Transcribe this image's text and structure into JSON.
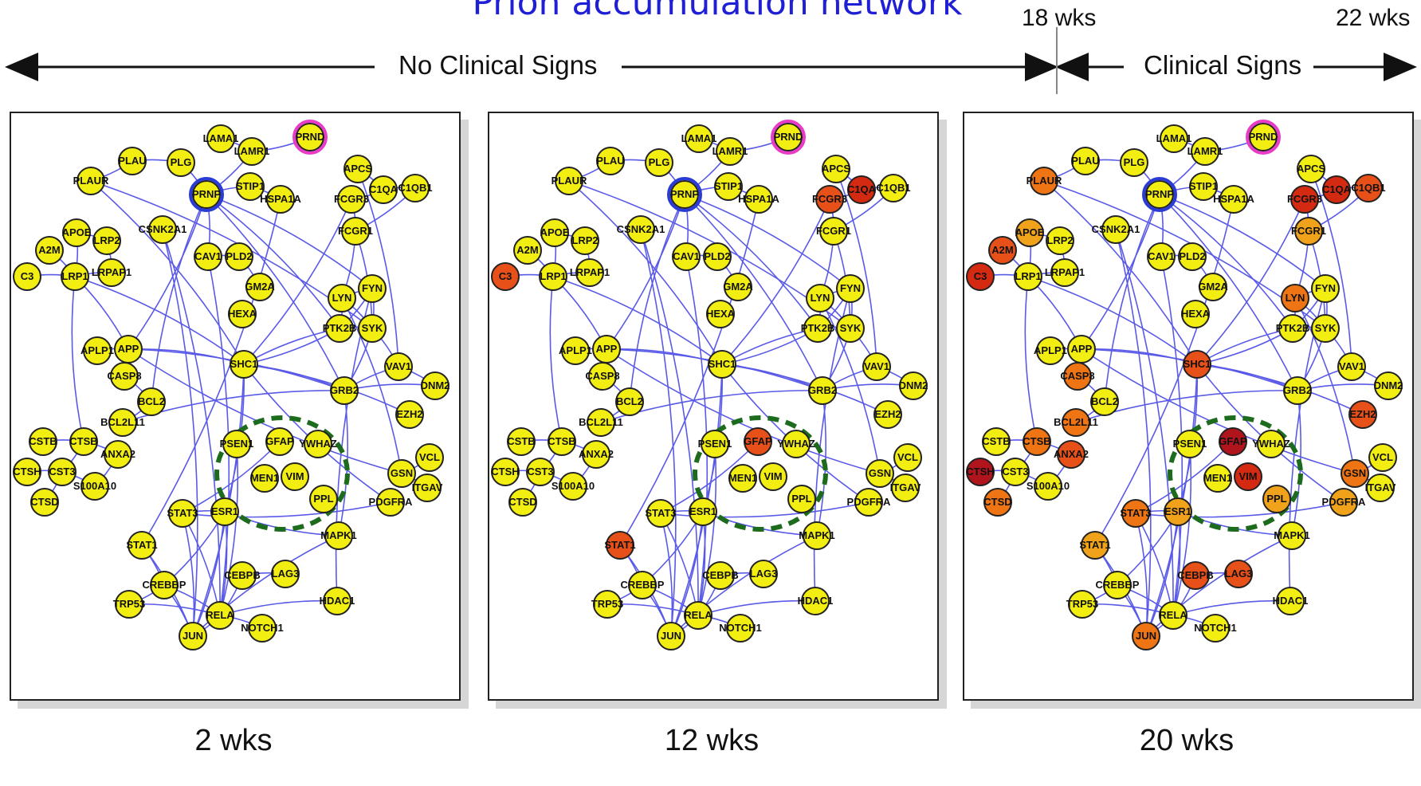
{
  "title": "Prion accumulation network",
  "timeline": {
    "week_18": "18 wks",
    "week_22": "22 wks",
    "phase_no_signs": "No Clinical Signs",
    "phase_signs": "Clinical Signs"
  },
  "colors": {
    "title": "#1f1fd6",
    "edge": "#5a5ae8",
    "highlight_ring_prnp": "#2a3bd6",
    "highlight_ring_prnd": "#e83cc8",
    "cluster_ring": "#1d6b1d",
    "yellow": "#f2ee11",
    "orange_light": "#f0a21a",
    "orange": "#ee7414",
    "red_orange": "#e8501a",
    "red": "#d42a12",
    "dark_red": "#b0141c"
  },
  "nodes": [
    "PRND",
    "LAMA1",
    "LAMR1",
    "PLG",
    "PLAU",
    "PLAUR",
    "PRNP",
    "STIP1",
    "HSPA1A",
    "APCS",
    "C1QA",
    "C1QB1",
    "FCGR3",
    "FCGR1",
    "CSNK2A1",
    "APOE",
    "LRP2",
    "A2M",
    "C3",
    "LRP1",
    "LRPAP1",
    "CAV1",
    "PLD2",
    "GM2A",
    "HEXA",
    "LYN",
    "FYN",
    "PTK2B",
    "SYK",
    "APLP1",
    "APP",
    "CASP8",
    "SHC1",
    "VAV1",
    "DNM2",
    "GRB2",
    "BCL2",
    "BCL2L11",
    "EZH2",
    "CSTB",
    "CTSB",
    "ANXA2",
    "PSEN1",
    "GFAP",
    "YWHAZ",
    "VCL",
    "CTSH",
    "CST3",
    "S100A10",
    "MEN1",
    "VIM",
    "GSN",
    "ITGAV",
    "CTSD",
    "PPL",
    "PDGFRA",
    "STAT3",
    "ESR1",
    "STAT1",
    "MAPK1",
    "CEBPB",
    "LAG3",
    "CREBBP",
    "HDAC1",
    "TRP53",
    "RELA",
    "JUN",
    "NOTCH1"
  ],
  "panels": [
    {
      "label": "2 wks",
      "node_colors": {}
    },
    {
      "label": "12 wks",
      "node_colors": {
        "C3": "red_orange",
        "FCGR3": "red_orange",
        "C1QA": "red",
        "GFAP": "red_orange",
        "STAT1": "red_orange"
      }
    },
    {
      "label": "20 wks",
      "node_colors": {
        "PLAUR": "orange",
        "FCGR3": "red",
        "C1QA": "red",
        "C1QB1": "red_orange",
        "FCGR1": "orange_light",
        "A2M": "red_orange",
        "APOE": "orange_light",
        "C3": "red",
        "LYN": "orange",
        "SHC1": "red_orange",
        "CASP8": "orange",
        "BCL2L11": "orange",
        "CTSB": "orange",
        "ANXA2": "red_orange",
        "CTSH": "dark_red",
        "CTSD": "orange",
        "GFAP": "dark_red",
        "VIM": "red",
        "PPL": "orange_light",
        "EZH2": "red_orange",
        "GSN": "orange",
        "PDGFRA": "orange_light",
        "STAT3": "orange",
        "ESR1": "orange_light",
        "STAT1": "orange_light",
        "CEBPB": "red_orange",
        "LAG3": "red_orange",
        "JUN": "orange",
        "HSPA1A": "yellow"
      }
    }
  ]
}
